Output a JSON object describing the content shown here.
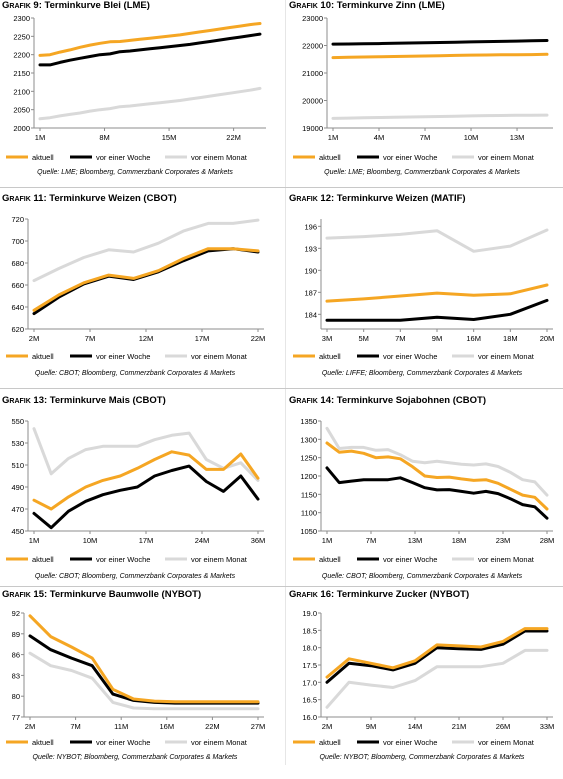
{
  "colors": {
    "aktuell": "#f5a623",
    "woche": "#000000",
    "monat": "#d9d9d9",
    "axis": "#8c8c8c"
  },
  "panels": [
    {
      "prefix": "Grafik",
      "number": "9:",
      "title": "Terminkurve Blei (LME)",
      "source": "Quelle: LME; Bloomberg, Commerzbank Corporates & Markets",
      "chart_data": {
        "type": "line",
        "x_tick_labels": [
          "1M",
          "8M",
          "15M",
          "22M"
        ],
        "y_ticks": [
          "2000",
          "2050",
          "2100",
          "2150",
          "2200",
          "2250",
          "2300"
        ],
        "ylim": [
          2000,
          2300
        ],
        "series": [
          {
            "name": "aktuell",
            "values": [
              2198,
              2200,
              2207,
              2213,
              2220,
              2226,
              2231,
              2235,
              2236,
              2239,
              2242,
              2245,
              2248,
              2251,
              2254,
              2258,
              2262,
              2266,
              2270,
              2274,
              2278,
              2282,
              2285
            ]
          },
          {
            "name": "vor einer Woche",
            "values": [
              2172,
              2172,
              2179,
              2185,
              2190,
              2195,
              2200,
              2202,
              2208,
              2210,
              2213,
              2216,
              2219,
              2222,
              2225,
              2228,
              2232,
              2236,
              2240,
              2244,
              2248,
              2252,
              2256
            ]
          },
          {
            "name": "vor einem Monat",
            "values": [
              2025,
              2028,
              2033,
              2037,
              2041,
              2046,
              2050,
              2053,
              2058,
              2060,
              2063,
              2066,
              2069,
              2072,
              2075,
              2079,
              2083,
              2087,
              2091,
              2095,
              2099,
              2103,
              2108
            ]
          }
        ]
      }
    },
    {
      "prefix": "Grafik",
      "number": "10:",
      "title": "Terminkurve Zinn (LME)",
      "source": "Quelle: LME; Bloomberg, Commerzbank Corporates & Markets",
      "chart_data": {
        "type": "line",
        "x_tick_labels": [
          "1M",
          "4M",
          "7M",
          "10M",
          "13M"
        ],
        "y_ticks": [
          "19000",
          "20000",
          "21000",
          "22000",
          "23000"
        ],
        "ylim": [
          19000,
          23000
        ],
        "series": [
          {
            "name": "aktuell",
            "values": [
              21560,
              21570,
              21580,
              21590,
              21600,
              21610,
              21620,
              21630,
              21640,
              21650,
              21655,
              21660,
              21665,
              21670,
              21680
            ]
          },
          {
            "name": "vor einer Woche",
            "values": [
              22050,
              22055,
              22060,
              22070,
              22080,
              22090,
              22100,
              22110,
              22120,
              22130,
              22140,
              22150,
              22160,
              22170,
              22180
            ]
          },
          {
            "name": "vor einem Monat",
            "values": [
              19350,
              19360,
              19370,
              19380,
              19390,
              19400,
              19410,
              19420,
              19430,
              19440,
              19450,
              19455,
              19460,
              19465,
              19470
            ]
          }
        ]
      }
    },
    {
      "prefix": "Grafik",
      "number": "11:",
      "title": "Terminkurve Weizen (CBOT)",
      "source": "Quelle: CBOT; Bloomberg, Commerzbank Corporates & Markets",
      "chart_data": {
        "type": "line",
        "x_tick_labels": [
          "2M",
          "7M",
          "12M",
          "17M",
          "22M"
        ],
        "y_ticks": [
          "620",
          "640",
          "660",
          "680",
          "700",
          "720"
        ],
        "ylim": [
          620,
          720
        ],
        "series": [
          {
            "name": "aktuell",
            "values": [
              637,
              651,
              662,
              669,
              666,
              673,
              684,
              693,
              693,
              691
            ]
          },
          {
            "name": "vor einer Woche",
            "values": [
              634,
              649,
              661,
              668,
              665,
              672,
              682,
              691,
              693,
              690
            ]
          },
          {
            "name": "vor einem Monat",
            "values": [
              664,
              675,
              685,
              692,
              690,
              698,
              709,
              716,
              716,
              719
            ]
          }
        ]
      }
    },
    {
      "prefix": "Grafik",
      "number": "12:",
      "title": "Terminkurve Weizen (MATIF)",
      "source": "Quelle: LIFFE; Bloomberg, Commerzbank Corporates & Markets",
      "chart_data": {
        "type": "line",
        "x_tick_labels": [
          "3M",
          "5M",
          "7M",
          "9M",
          "16M",
          "18M",
          "20M"
        ],
        "y_ticks": [
          "184",
          "187",
          "190",
          "193",
          "196"
        ],
        "ylim": [
          182,
          197
        ],
        "series": [
          {
            "name": "aktuell",
            "values": [
              185.8,
              186.1,
              186.5,
              186.9,
              186.6,
              186.8,
              188.0
            ]
          },
          {
            "name": "vor einer Woche",
            "values": [
              183.2,
              183.2,
              183.2,
              183.6,
              183.3,
              184.0,
              185.9
            ]
          },
          {
            "name": "vor einem Monat",
            "values": [
              194.4,
              194.6,
              194.9,
              195.4,
              192.6,
              193.3,
              195.5
            ]
          }
        ]
      }
    },
    {
      "prefix": "Grafik",
      "number": "13:",
      "title": "Terminkurve Mais (CBOT)",
      "source": "Quelle: CBOT; Bloomberg, Commerzbank Corporates & Markets",
      "chart_data": {
        "type": "line",
        "x_tick_labels": [
          "1M",
          "10M",
          "17M",
          "24M",
          "36M"
        ],
        "y_ticks": [
          "450",
          "470",
          "490",
          "510",
          "530",
          "550"
        ],
        "ylim": [
          450,
          550
        ],
        "series": [
          {
            "name": "aktuell",
            "values": [
              478,
              470,
              481,
              490,
              496,
              500,
              507,
              515,
              522,
              519,
              506,
              506,
              520,
              498
            ]
          },
          {
            "name": "vor einer Woche",
            "values": [
              466,
              453,
              468,
              477,
              483,
              487,
              490,
              500,
              505,
              509,
              495,
              486,
              500,
              479
            ]
          },
          {
            "name": "vor einem Monat",
            "values": [
              543,
              502,
              516,
              524,
              527,
              527,
              527,
              533,
              537,
              539,
              515,
              507,
              512,
              496
            ]
          }
        ]
      }
    },
    {
      "prefix": "Grafik",
      "number": "14:",
      "title": "Terminkurve Sojabohnen (CBOT)",
      "source": "Quelle: CBOT; Bloomberg, Commerzbank Corporates & Markets",
      "chart_data": {
        "type": "line",
        "x_tick_labels": [
          "1M",
          "7M",
          "13M",
          "18M",
          "23M",
          "28M"
        ],
        "y_ticks": [
          "1050",
          "1100",
          "1150",
          "1200",
          "1250",
          "1300",
          "1350"
        ],
        "ylim": [
          1050,
          1350
        ],
        "series": [
          {
            "name": "aktuell",
            "values": [
              1290,
              1265,
              1268,
              1262,
              1250,
              1252,
              1247,
              1225,
              1200,
              1196,
              1197,
              1192,
              1188,
              1190,
              1180,
              1164,
              1148,
              1142,
              1110
            ]
          },
          {
            "name": "vor einer Woche",
            "values": [
              1222,
              1182,
              1186,
              1190,
              1190,
              1190,
              1195,
              1182,
              1168,
              1162,
              1163,
              1158,
              1153,
              1158,
              1152,
              1138,
              1122,
              1116,
              1085
            ]
          },
          {
            "name": "vor einem Monat",
            "values": [
              1330,
              1275,
              1278,
              1278,
              1270,
              1272,
              1258,
              1240,
              1236,
              1240,
              1236,
              1232,
              1230,
              1233,
              1226,
              1210,
              1190,
              1184,
              1148
            ]
          }
        ]
      }
    },
    {
      "prefix": "Grafik",
      "number": "15:",
      "title": "Terminkurve Baumwolle (NYBOT)",
      "source": "Quelle: NYBOT; Bloomberg, Commerzbank Corporates & Markets",
      "chart_data": {
        "type": "line",
        "x_tick_labels": [
          "2M",
          "7M",
          "11M",
          "16M",
          "22M",
          "27M"
        ],
        "y_ticks": [
          "77",
          "80",
          "83",
          "86",
          "89",
          "92"
        ],
        "ylim": [
          77,
          92
        ],
        "series": [
          {
            "name": "aktuell",
            "values": [
              91.6,
              88.6,
              87.1,
              85.5,
              81.0,
              79.6,
              79.3,
              79.2,
              79.2,
              79.2,
              79.2,
              79.2
            ]
          },
          {
            "name": "vor einer Woche",
            "values": [
              88.7,
              86.7,
              85.5,
              84.4,
              80.3,
              79.4,
              79.1,
              79.0,
              79.0,
              79.0,
              79.0,
              79.0
            ]
          },
          {
            "name": "vor einem Monat",
            "values": [
              86.2,
              84.4,
              83.7,
              82.6,
              79.1,
              78.3,
              78.2,
              78.2,
              78.2,
              78.2,
              78.2,
              78.2
            ]
          }
        ]
      }
    },
    {
      "prefix": "Grafik",
      "number": "16:",
      "title": "Terminkurve Zucker (NYBOT)",
      "source": "Quelle: NYBOT; Bloomberg, Commerzbank Corporates & Markets",
      "chart_data": {
        "type": "line",
        "x_tick_labels": [
          "2M",
          "9M",
          "14M",
          "21M",
          "26M",
          "33M"
        ],
        "y_ticks": [
          "16.0",
          "16.5",
          "17.0",
          "17.5",
          "18.0",
          "18.5",
          "19.0"
        ],
        "ylim": [
          16.0,
          19.0
        ],
        "series": [
          {
            "name": "aktuell",
            "values": [
              17.15,
              17.68,
              17.55,
              17.42,
              17.62,
              18.08,
              18.05,
              18.02,
              18.18,
              18.55,
              18.55
            ]
          },
          {
            "name": "vor einer Woche",
            "values": [
              17.0,
              17.55,
              17.48,
              17.36,
              17.55,
              18.0,
              17.97,
              17.95,
              18.1,
              18.48,
              18.48
            ]
          },
          {
            "name": "vor einem Monat",
            "values": [
              16.28,
              17.0,
              16.92,
              16.85,
              17.05,
              17.45,
              17.45,
              17.45,
              17.55,
              17.92,
              17.92
            ]
          }
        ]
      }
    }
  ]
}
